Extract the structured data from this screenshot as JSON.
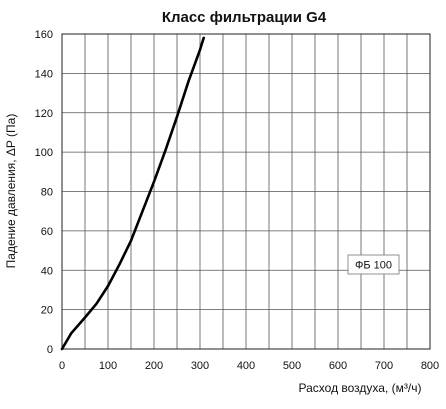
{
  "chart_data": {
    "type": "line",
    "title": "Класс фильтрации G4",
    "xlabel": "Расход воздуха, (м³/ч)",
    "ylabel": "Падение давления, ΔP (Па)",
    "xlim": [
      0,
      800
    ],
    "ylim": [
      0,
      160
    ],
    "x_ticks": [
      "0",
      "100",
      "200",
      "300",
      "400",
      "500",
      "600",
      "700",
      "800"
    ],
    "y_ticks": [
      "0",
      "20",
      "40",
      "60",
      "80",
      "100",
      "120",
      "140",
      "160"
    ],
    "grid": true,
    "legend_placement": "right-middle",
    "series": [
      {
        "name": "ФБ 100",
        "color": "#000000",
        "x": [
          0,
          20,
          50,
          75,
          100,
          125,
          150,
          175,
          200,
          225,
          250,
          275,
          300,
          308
        ],
        "y": [
          0,
          8,
          16,
          23,
          32,
          43,
          55,
          70,
          85,
          101,
          118,
          136,
          152,
          158
        ]
      }
    ]
  }
}
